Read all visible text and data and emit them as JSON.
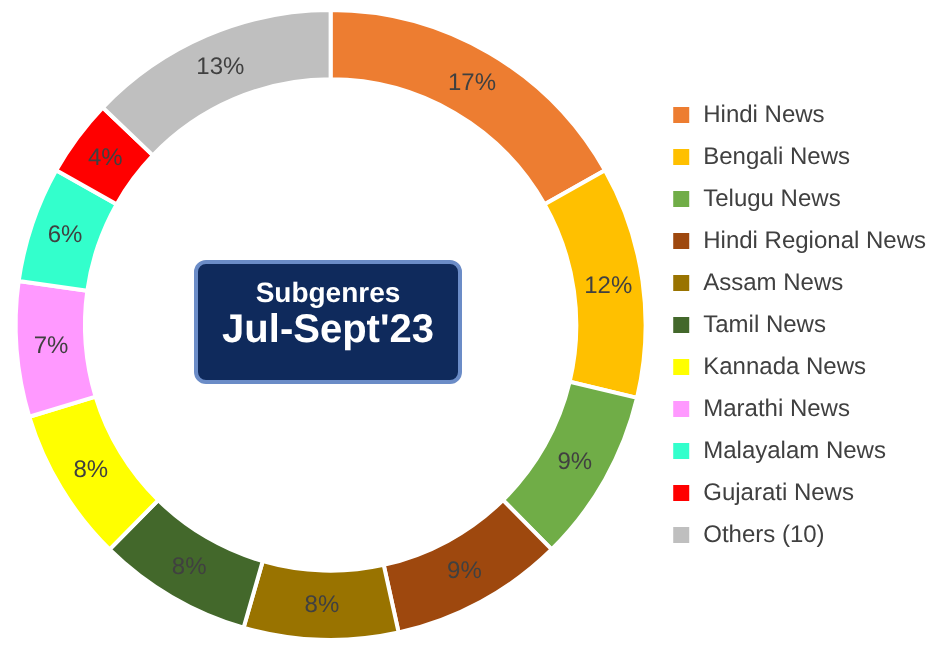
{
  "chart_data": {
    "type": "donut",
    "title": "Subgenres",
    "subtitle": "Jul-Sept'23",
    "categories": [
      "Hindi News",
      "Bengali News",
      "Telugu News",
      "Hindi Regional News",
      "Assam News",
      "Tamil News",
      "Kannada News",
      "Marathi News",
      "Malayalam News",
      "Gujarati News",
      "Others (10)"
    ],
    "values": [
      17,
      12,
      9,
      9,
      8,
      8,
      8,
      7,
      6,
      4,
      13
    ],
    "colors": [
      "#ed7d31",
      "#ffc000",
      "#70ad47",
      "#9e480e",
      "#997300",
      "#43682b",
      "#ffff00",
      "#ff99ff",
      "#33ffcc",
      "#ff0000",
      "#bfbfbf"
    ],
    "value_labels": [
      "17%",
      "12%",
      "9%",
      "9%",
      "8%",
      "8%",
      "8%",
      "7%",
      "6%",
      "4%",
      "13%"
    ],
    "legend": "right"
  }
}
